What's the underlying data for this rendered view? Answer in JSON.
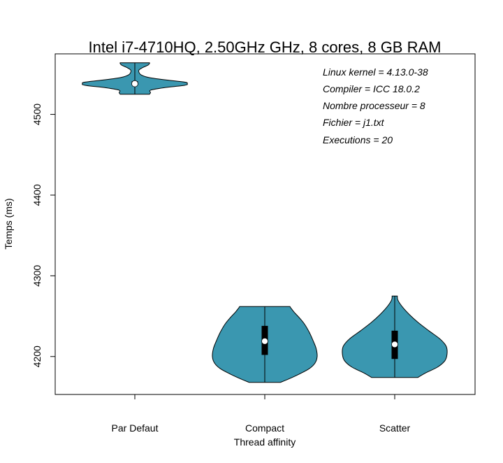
{
  "chart_data": {
    "type": "violin",
    "title": "Intel i7-4710HQ, 2.50GHz GHz, 8 cores, 8 GB RAM",
    "xlabel": "Thread affinity",
    "ylabel": "Temps (ms)",
    "ylim": [
      4153,
      4575
    ],
    "yticks": [
      4200,
      4300,
      4400,
      4500
    ],
    "categories": [
      "Par Defaut",
      "Compact",
      "Scatter"
    ],
    "fill_color": "#3A97B0",
    "annotations": [
      "Linux kernel = 4.13.0-38",
      "Compiler = ICC 18.0.2",
      "Nombre processeur = 8",
      "Fichier = j1.txt",
      "Executions = 20"
    ],
    "series": [
      {
        "category": "Par Defaut",
        "min": 4525,
        "max": 4564,
        "q1": 4536,
        "median": 4538,
        "q3": 4541,
        "density": [
          [
            4525,
            0.28
          ],
          [
            4527,
            0.3
          ],
          [
            4530,
            0.3
          ],
          [
            4533,
            0.55
          ],
          [
            4536,
            0.95
          ],
          [
            4538,
            1.0
          ],
          [
            4540,
            0.95
          ],
          [
            4543,
            0.55
          ],
          [
            4546,
            0.25
          ],
          [
            4549,
            0.12
          ],
          [
            4552,
            0.08
          ],
          [
            4555,
            0.08
          ],
          [
            4558,
            0.15
          ],
          [
            4561,
            0.25
          ],
          [
            4563,
            0.28
          ],
          [
            4564,
            0.28
          ]
        ]
      },
      {
        "category": "Compact",
        "min": 4168,
        "max": 4262,
        "q1": 4202,
        "median": 4219,
        "q3": 4238,
        "density": [
          [
            4168,
            0.3
          ],
          [
            4172,
            0.45
          ],
          [
            4178,
            0.65
          ],
          [
            4185,
            0.85
          ],
          [
            4192,
            0.96
          ],
          [
            4200,
            1.0
          ],
          [
            4210,
            0.98
          ],
          [
            4220,
            0.92
          ],
          [
            4230,
            0.85
          ],
          [
            4240,
            0.76
          ],
          [
            4248,
            0.66
          ],
          [
            4255,
            0.56
          ],
          [
            4260,
            0.5
          ],
          [
            4262,
            0.48
          ]
        ]
      },
      {
        "category": "Scatter",
        "min": 4174,
        "max": 4275,
        "q1": 4197,
        "median": 4215,
        "q3": 4232,
        "density": [
          [
            4174,
            0.44
          ],
          [
            4180,
            0.6
          ],
          [
            4187,
            0.82
          ],
          [
            4195,
            0.96
          ],
          [
            4204,
            1.0
          ],
          [
            4213,
            0.98
          ],
          [
            4222,
            0.86
          ],
          [
            4232,
            0.65
          ],
          [
            4242,
            0.45
          ],
          [
            4252,
            0.28
          ],
          [
            4262,
            0.14
          ],
          [
            4270,
            0.06
          ],
          [
            4275,
            0.05
          ]
        ]
      }
    ]
  }
}
